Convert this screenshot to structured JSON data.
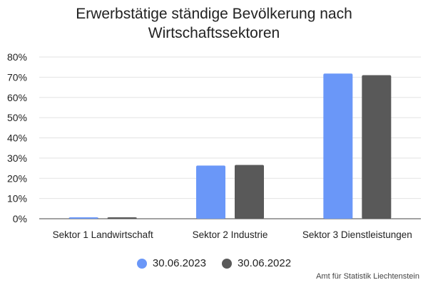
{
  "chart_data": {
    "type": "bar",
    "title_lines": [
      "Erwerbstätige ständige Bevölkerung nach",
      "Wirtschaftssektoren"
    ],
    "categories": [
      "Sektor 1 Landwirtschaft",
      "Sektor 2 Industrie",
      "Sektor 3 Dienstleistungen"
    ],
    "series": [
      {
        "name": "30.06.2023",
        "color": "#6A97F8",
        "values": [
          0.7,
          26.3,
          71.8
        ]
      },
      {
        "name": "30.06.2022",
        "color": "#595959",
        "values": [
          0.7,
          26.6,
          71.0
        ]
      }
    ],
    "y_ticks": [
      "0%",
      "10%",
      "20%",
      "30%",
      "40%",
      "50%",
      "60%",
      "70%",
      "80%"
    ],
    "ylim": [
      0,
      80
    ],
    "grid": true,
    "legend_position": "bottom",
    "source": "Amt für Statistik Liechtenstein"
  }
}
